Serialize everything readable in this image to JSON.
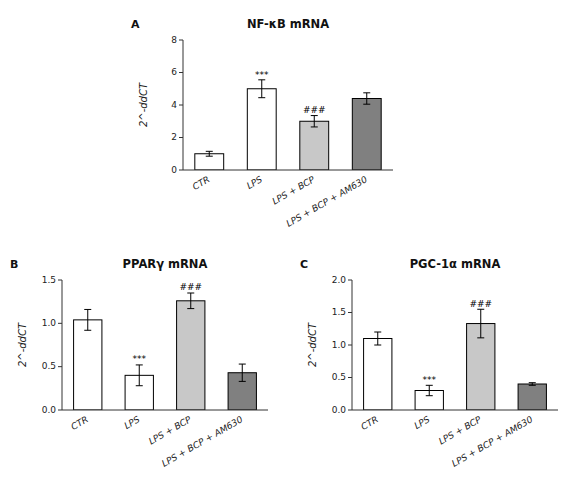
{
  "chart_data": [
    {
      "type": "bar",
      "title": "NF-κB mRNA",
      "panel_label": "A",
      "ylabel": "2^-ddCT",
      "categories": [
        "CTR",
        "LPS",
        "LPS + BCP",
        "LPS + BCP + AM630"
      ],
      "values": [
        1.0,
        5.0,
        3.0,
        4.4
      ],
      "errors": [
        0.15,
        0.55,
        0.35,
        0.35
      ],
      "colors": [
        "white",
        "white",
        "#c8c8c8",
        "#808080"
      ],
      "ylim": [
        0,
        8
      ],
      "yticks": [
        0,
        2,
        4,
        6,
        8
      ],
      "grid": false,
      "annotations": [
        {
          "text": "***",
          "category": "LPS",
          "y": 5.6
        },
        {
          "text": "###",
          "category": "LPS + BCP",
          "y": 3.42
        }
      ]
    },
    {
      "type": "bar",
      "title": "PPARγ mRNA",
      "panel_label": "B",
      "ylabel": "2^-ddCT",
      "categories": [
        "CTR",
        "LPS",
        "LPS + BCP",
        "LPS + BCP + AM630"
      ],
      "values": [
        1.04,
        0.4,
        1.26,
        0.43
      ],
      "errors": [
        0.12,
        0.12,
        0.09,
        0.1
      ],
      "colors": [
        "white",
        "white",
        "#c8c8c8",
        "#808080"
      ],
      "ylim": [
        0,
        1.5
      ],
      "yticks": [
        {
          "value": 0,
          "label": "0.0"
        },
        0.5,
        {
          "value": 1,
          "label": "1.0"
        },
        1.5
      ],
      "grid": false,
      "annotations": [
        {
          "text": "***",
          "category": "LPS",
          "y": 0.54
        },
        {
          "text": "###",
          "category": "LPS + BCP",
          "y": 1.37
        }
      ]
    },
    {
      "type": "bar",
      "title": "PGC-1α mRNA",
      "panel_label": "C",
      "ylabel": "2^-ddCT",
      "categories": [
        "CTR",
        "LPS",
        "LPS + BCP",
        "LPS + BCP + AM630"
      ],
      "values": [
        1.1,
        0.3,
        1.33,
        0.4
      ],
      "errors": [
        0.1,
        0.08,
        0.22,
        0.02
      ],
      "colors": [
        "white",
        "white",
        "#c8c8c8",
        "#808080"
      ],
      "ylim": [
        0,
        2.0
      ],
      "yticks": [
        {
          "value": 0,
          "label": "0.0"
        },
        0.5,
        {
          "value": 1,
          "label": "1.0"
        },
        1.5,
        {
          "value": 2,
          "label": "2.0"
        }
      ],
      "grid": false,
      "annotations": [
        {
          "text": "***",
          "category": "LPS",
          "y": 0.4
        },
        {
          "text": "###",
          "category": "LPS + BCP",
          "y": 1.57
        }
      ]
    }
  ]
}
